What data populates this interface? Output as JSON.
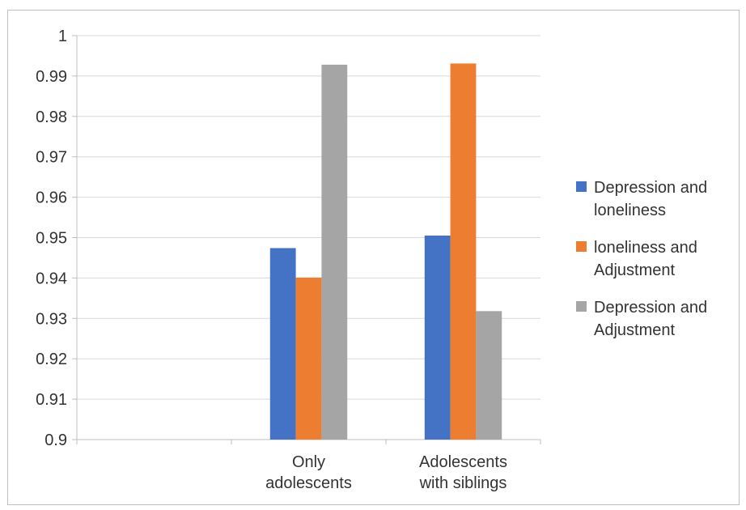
{
  "chart_data": {
    "type": "bar",
    "categories": [
      "",
      "Only\nadolescents",
      "Adolescents\nwith siblings"
    ],
    "series": [
      {
        "name": "Depression  and\nloneliness",
        "color": "#4472c4",
        "values": [
          null,
          0.9474,
          0.9505
        ]
      },
      {
        "name": "loneliness and\nAdjustment",
        "color": "#ed7d31",
        "values": [
          null,
          0.9401,
          0.9931
        ]
      },
      {
        "name": " Depression and\nAdjustment",
        "color": "#a5a5a5",
        "values": [
          null,
          0.9928,
          0.9318
        ]
      }
    ],
    "ylim": [
      0.9,
      1.0
    ],
    "yticks": [
      "0.9",
      "0.91",
      "0.92",
      "0.93",
      "0.94",
      "0.95",
      "0.96",
      "0.97",
      "0.98",
      "0.99",
      "1"
    ],
    "grid": true,
    "legend_position": "right"
  }
}
